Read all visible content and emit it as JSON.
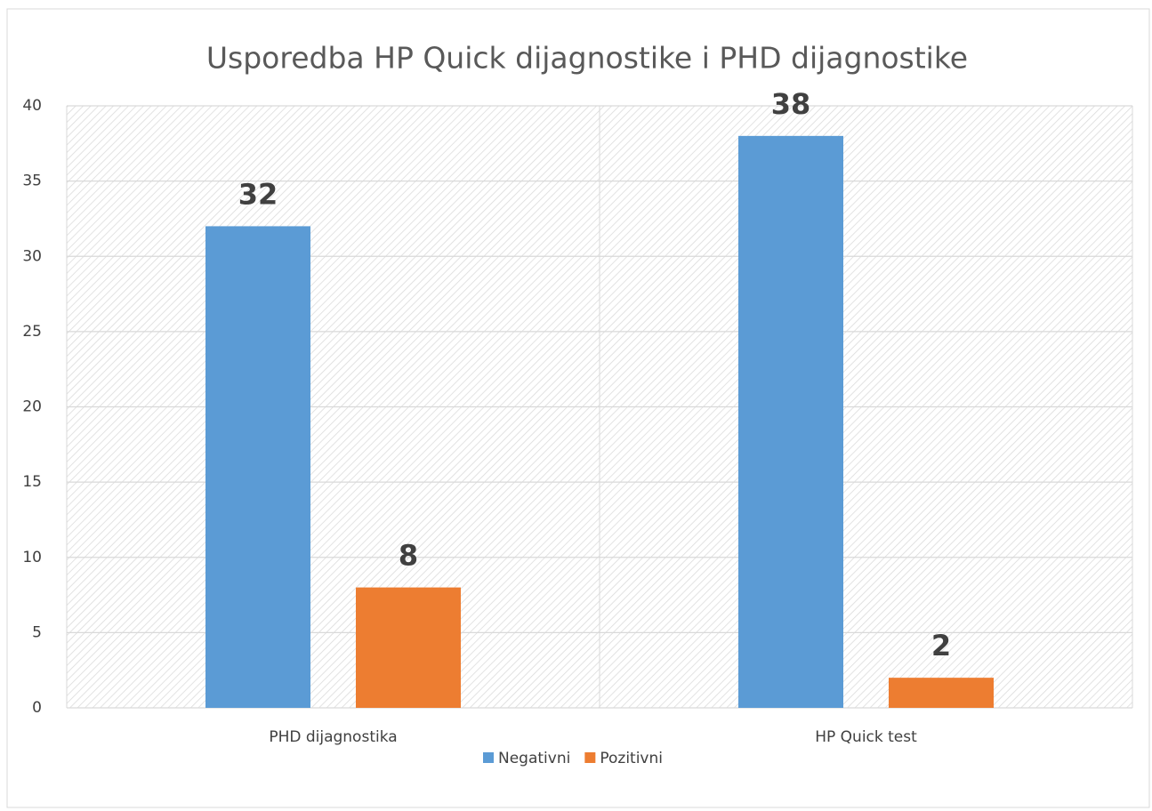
{
  "chart_data": {
    "type": "bar",
    "title": "Usporedba HP Quick dijagnostike i PHD dijagnostike",
    "categories": [
      "PHD dijagnostika",
      "HP Quick test"
    ],
    "series": [
      {
        "name": "Negativni",
        "color": "#5b9bd5",
        "values": [
          32,
          38
        ]
      },
      {
        "name": "Pozitivni",
        "color": "#ed7d31",
        "values": [
          8,
          2
        ]
      }
    ],
    "ylim": [
      0,
      40
    ],
    "yticks": [
      0,
      5,
      10,
      15,
      20,
      25,
      30,
      35,
      40
    ],
    "grid": true,
    "legend": "bottom"
  }
}
